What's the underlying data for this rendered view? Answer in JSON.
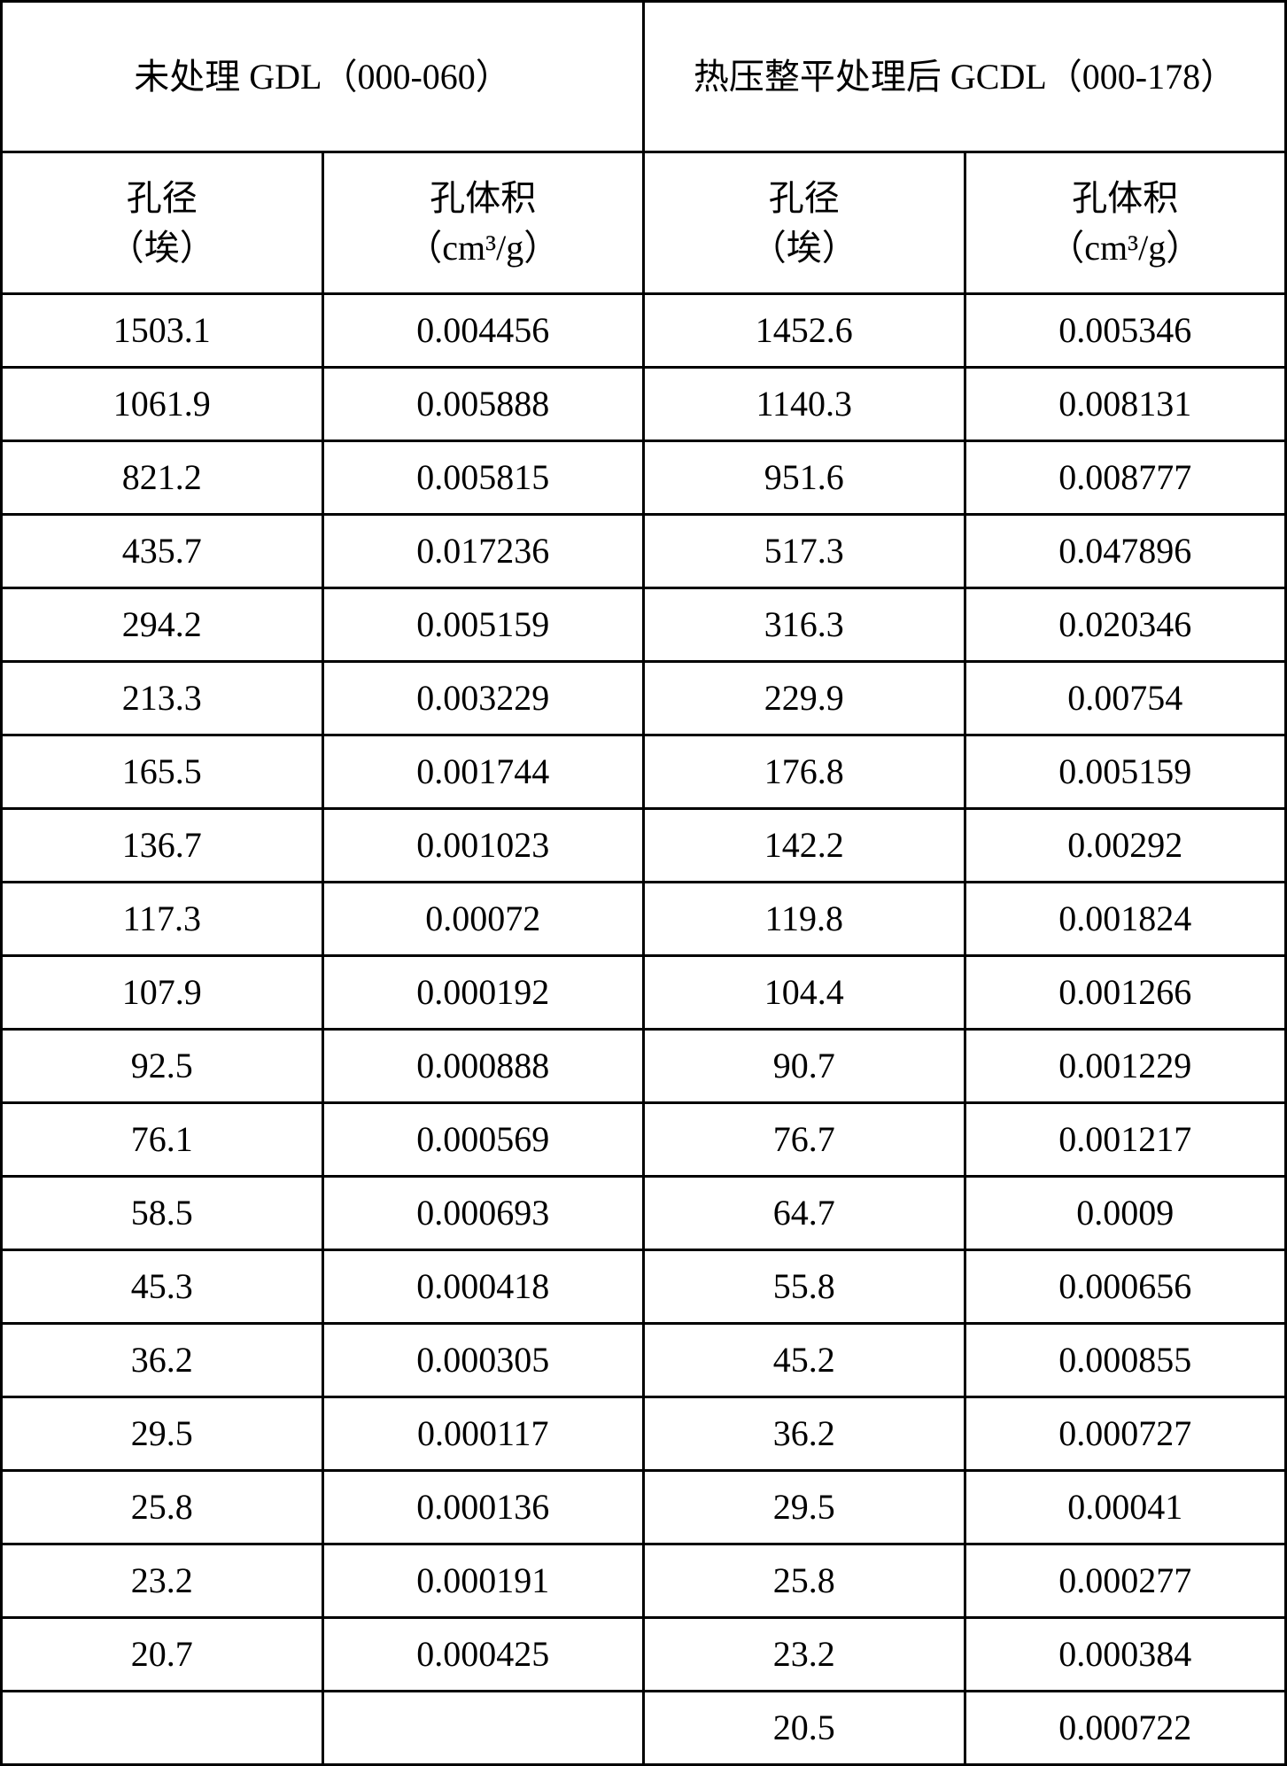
{
  "table": {
    "type": "table",
    "border_color": "#000000",
    "background_color": "#ffffff",
    "text_color": "#000000",
    "font_family": "SimSun",
    "header_fontsize": 40,
    "cell_fontsize": 40,
    "top_headers": [
      "未处理 GDL（000-060）",
      "热压整平处理后 GCDL（000-178）"
    ],
    "sub_headers": [
      {
        "label": "孔径",
        "unit": "（埃）"
      },
      {
        "label": "孔体积",
        "unit": "（cm³/g）"
      },
      {
        "label": "孔径",
        "unit": "（埃）"
      },
      {
        "label": "孔体积",
        "unit": "（cm³/g）"
      }
    ],
    "rows": [
      [
        "1503.1",
        "0.004456",
        "1452.6",
        "0.005346"
      ],
      [
        "1061.9",
        "0.005888",
        "1140.3",
        "0.008131"
      ],
      [
        "821.2",
        "0.005815",
        "951.6",
        "0.008777"
      ],
      [
        "435.7",
        "0.017236",
        "517.3",
        "0.047896"
      ],
      [
        "294.2",
        "0.005159",
        "316.3",
        "0.020346"
      ],
      [
        "213.3",
        "0.003229",
        "229.9",
        "0.00754"
      ],
      [
        "165.5",
        "0.001744",
        "176.8",
        "0.005159"
      ],
      [
        "136.7",
        "0.001023",
        "142.2",
        "0.00292"
      ],
      [
        "117.3",
        "0.00072",
        "119.8",
        "0.001824"
      ],
      [
        "107.9",
        "0.000192",
        "104.4",
        "0.001266"
      ],
      [
        "92.5",
        "0.000888",
        "90.7",
        "0.001229"
      ],
      [
        "76.1",
        "0.000569",
        "76.7",
        "0.001217"
      ],
      [
        "58.5",
        "0.000693",
        "64.7",
        "0.0009"
      ],
      [
        "45.3",
        "0.000418",
        "55.8",
        "0.000656"
      ],
      [
        "36.2",
        "0.000305",
        "45.2",
        "0.000855"
      ],
      [
        "29.5",
        "0.000117",
        "36.2",
        "0.000727"
      ],
      [
        "25.8",
        "0.000136",
        "29.5",
        "0.00041"
      ],
      [
        "23.2",
        "0.000191",
        "25.8",
        "0.000277"
      ],
      [
        "20.7",
        "0.000425",
        "23.2",
        "0.000384"
      ],
      [
        "",
        "",
        "20.5",
        "0.000722"
      ]
    ],
    "column_count": 4,
    "column_width_percent": 25
  }
}
